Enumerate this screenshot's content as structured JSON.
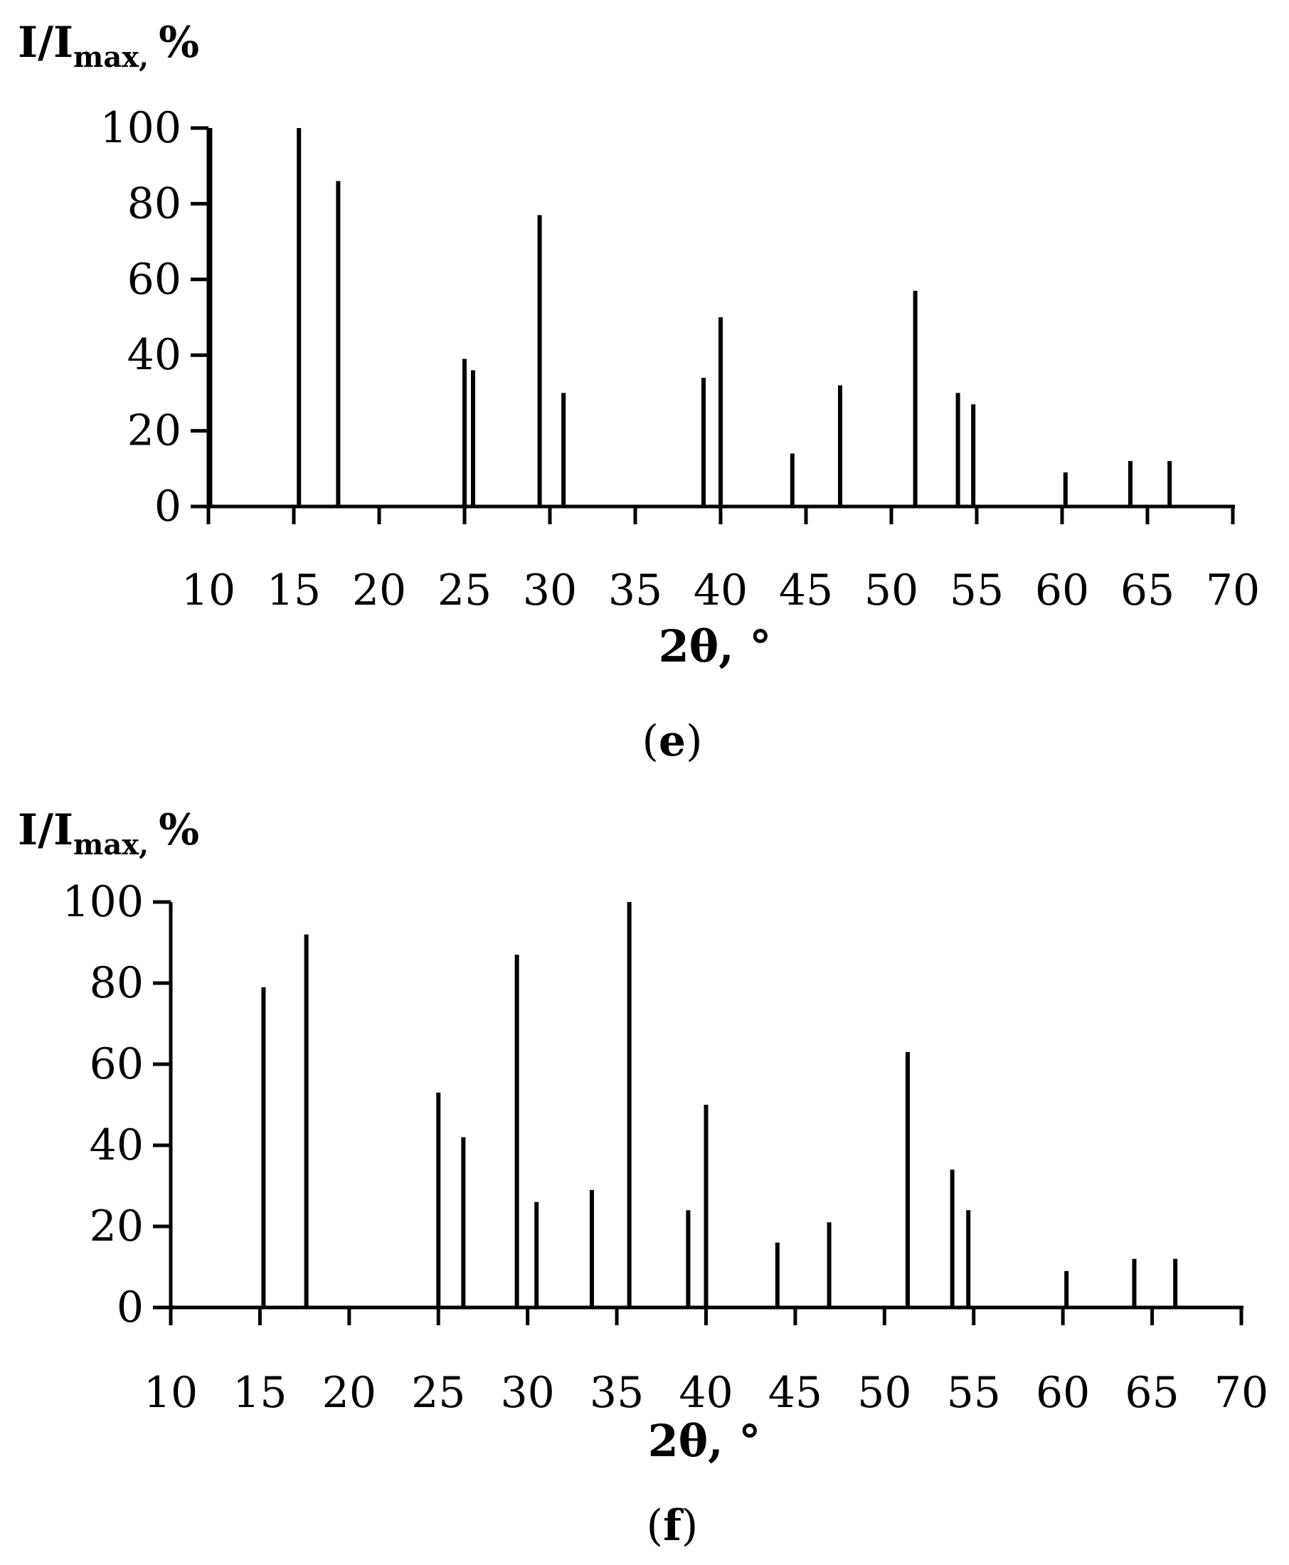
{
  "chart_data": [
    {
      "type": "bar",
      "panel": "(e)",
      "panel_letter": "e",
      "ylabel_main": "I/I",
      "ylabel_sub": "max,",
      "ylabel_unit": "%",
      "xlabel": "2θ, °",
      "xlim": [
        10,
        70
      ],
      "ylim": [
        0,
        100
      ],
      "xticks": [
        10,
        15,
        20,
        25,
        30,
        35,
        40,
        45,
        50,
        55,
        60,
        65,
        70
      ],
      "yticks": [
        0,
        20,
        40,
        60,
        80,
        100
      ],
      "grid": false,
      "peaks": [
        {
          "x": 10.1,
          "y": 100
        },
        {
          "x": 15.3,
          "y": 100
        },
        {
          "x": 17.6,
          "y": 86
        },
        {
          "x": 25.0,
          "y": 39
        },
        {
          "x": 25.5,
          "y": 36
        },
        {
          "x": 29.4,
          "y": 77
        },
        {
          "x": 30.8,
          "y": 30
        },
        {
          "x": 39.0,
          "y": 34
        },
        {
          "x": 40.0,
          "y": 50
        },
        {
          "x": 44.2,
          "y": 14
        },
        {
          "x": 47.0,
          "y": 32
        },
        {
          "x": 51.4,
          "y": 57
        },
        {
          "x": 53.9,
          "y": 30
        },
        {
          "x": 54.8,
          "y": 27
        },
        {
          "x": 60.2,
          "y": 9
        },
        {
          "x": 64.0,
          "y": 12
        },
        {
          "x": 66.3,
          "y": 12
        }
      ]
    },
    {
      "type": "bar",
      "panel": "(f)",
      "panel_letter": "f",
      "ylabel_main": "I/I",
      "ylabel_sub": "max,",
      "ylabel_unit": "%",
      "xlabel": "2θ, °",
      "xlim": [
        10,
        70
      ],
      "ylim": [
        0,
        100
      ],
      "xticks": [
        10,
        15,
        20,
        25,
        30,
        35,
        40,
        45,
        50,
        55,
        60,
        65,
        70
      ],
      "yticks": [
        0,
        20,
        40,
        60,
        80,
        100
      ],
      "grid": false,
      "peaks": [
        {
          "x": 15.2,
          "y": 79
        },
        {
          "x": 17.6,
          "y": 92
        },
        {
          "x": 25.0,
          "y": 53
        },
        {
          "x": 26.4,
          "y": 42
        },
        {
          "x": 29.4,
          "y": 87
        },
        {
          "x": 30.5,
          "y": 26
        },
        {
          "x": 33.6,
          "y": 29
        },
        {
          "x": 35.7,
          "y": 100
        },
        {
          "x": 39.0,
          "y": 24
        },
        {
          "x": 40.0,
          "y": 50
        },
        {
          "x": 44.0,
          "y": 16
        },
        {
          "x": 46.9,
          "y": 21
        },
        {
          "x": 51.3,
          "y": 63
        },
        {
          "x": 53.8,
          "y": 34
        },
        {
          "x": 54.7,
          "y": 24
        },
        {
          "x": 60.2,
          "y": 9
        },
        {
          "x": 64.0,
          "y": 12
        },
        {
          "x": 66.3,
          "y": 12
        }
      ]
    }
  ]
}
